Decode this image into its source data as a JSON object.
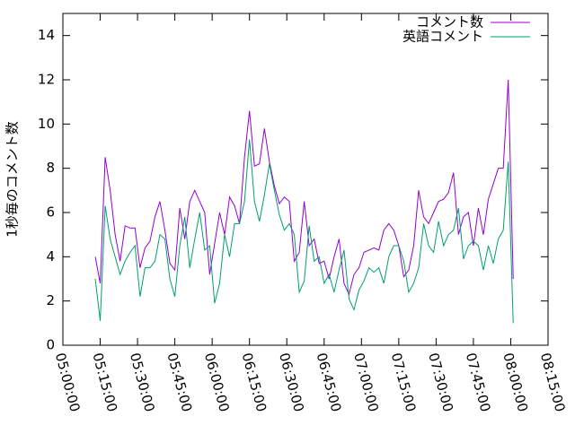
{
  "chart_data": {
    "type": "line",
    "ylabel": "1秒毎のコメント数",
    "x": [
      "05:13:00",
      "05:15:00",
      "05:17:00",
      "05:19:00",
      "05:21:00",
      "05:23:00",
      "05:25:00",
      "05:27:00",
      "05:29:00",
      "05:31:00",
      "05:33:00",
      "05:35:00",
      "05:37:00",
      "05:39:00",
      "05:41:00",
      "05:43:00",
      "05:45:00",
      "05:47:00",
      "05:49:00",
      "05:51:00",
      "05:53:00",
      "05:55:00",
      "05:57:00",
      "05:59:00",
      "06:01:00",
      "06:03:00",
      "06:05:00",
      "06:07:00",
      "06:09:00",
      "06:11:00",
      "06:13:00",
      "06:15:00",
      "06:17:00",
      "06:19:00",
      "06:21:00",
      "06:23:00",
      "06:25:00",
      "06:27:00",
      "06:29:00",
      "06:31:00",
      "06:33:00",
      "06:35:00",
      "06:37:00",
      "06:39:00",
      "06:41:00",
      "06:43:00",
      "06:45:00",
      "06:47:00",
      "06:49:00",
      "06:51:00",
      "06:53:00",
      "06:55:00",
      "06:57:00",
      "06:59:00",
      "07:01:00",
      "07:03:00",
      "07:05:00",
      "07:07:00",
      "07:09:00",
      "07:11:00",
      "07:13:00",
      "07:15:00",
      "07:17:00",
      "07:19:00",
      "07:21:00",
      "07:23:00",
      "07:25:00",
      "07:27:00",
      "07:29:00",
      "07:31:00",
      "07:33:00",
      "07:35:00",
      "07:37:00",
      "07:39:00",
      "07:41:00",
      "07:43:00",
      "07:45:00",
      "07:47:00",
      "07:49:00",
      "07:51:00",
      "07:53:00",
      "07:55:00",
      "07:57:00",
      "07:59:00",
      "08:01:00"
    ],
    "series": [
      {
        "name": "コメント数",
        "color": "#9400d3",
        "values": [
          4,
          2.8,
          8.5,
          7,
          5,
          3.8,
          5.4,
          5.3,
          5.3,
          3.5,
          4.4,
          4.7,
          5.8,
          6.5,
          5.2,
          3.7,
          3.4,
          6.2,
          4.8,
          6.5,
          7,
          6.5,
          6,
          3.2,
          4.6,
          6,
          5,
          6.7,
          6.3,
          5.5,
          8.5,
          10.6,
          8.1,
          8.2,
          9.8,
          8.3,
          7.2,
          6.4,
          6.7,
          6.5,
          3.8,
          4.2,
          6.5,
          4.5,
          4.8,
          3.7,
          3.8,
          3,
          4,
          4.8,
          2.8,
          2.3,
          3.2,
          3.5,
          4.2,
          4.3,
          4.4,
          4.3,
          5.2,
          5.5,
          5.2,
          4.5,
          3.1,
          3.4,
          4.5,
          7,
          5.8,
          5.5,
          6,
          6.5,
          6.6,
          6.9,
          7.8,
          5,
          5.8,
          6,
          4.5,
          6.2,
          5,
          6.6,
          7.3,
          8,
          8,
          12,
          3
        ]
      },
      {
        "name": "英語コメント",
        "color": "#009e73",
        "values": [
          3,
          1.1,
          6.3,
          4.8,
          4,
          3.2,
          3.8,
          4.2,
          4.5,
          2.2,
          3.5,
          3.5,
          3.8,
          5,
          4.8,
          3,
          2.2,
          4.5,
          5.8,
          3.5,
          4.8,
          6,
          4.3,
          4.5,
          1.9,
          2.8,
          5,
          4,
          5.5,
          5.5,
          6.5,
          9.3,
          6.5,
          5.6,
          6.8,
          8.2,
          7,
          5.9,
          5.2,
          5.5,
          5,
          2.4,
          2.9,
          5.4,
          3.8,
          4,
          2.8,
          3.2,
          2.4,
          3.4,
          4.3,
          2.1,
          1.6,
          2.5,
          2.9,
          3.5,
          3.3,
          3.5,
          2.8,
          4,
          4.5,
          4.5,
          3.8,
          2.4,
          2.8,
          3.5,
          5.5,
          4.5,
          4.2,
          5.6,
          4.5,
          5,
          5.2,
          6.2,
          3.9,
          4.5,
          4.7,
          4.5,
          3.4,
          4.5,
          3.7,
          4.8,
          5.2,
          8.3,
          1
        ]
      }
    ],
    "xlim": [
      "05:00:00",
      "08:15:00"
    ],
    "xticks": [
      "05:00:00",
      "05:15:00",
      "05:30:00",
      "05:45:00",
      "06:00:00",
      "06:15:00",
      "06:30:00",
      "06:45:00",
      "07:00:00",
      "07:15:00",
      "07:30:00",
      "07:45:00",
      "08:00:00",
      "08:15:00"
    ],
    "ylim": [
      0,
      15
    ],
    "yticks": [
      0,
      2,
      4,
      6,
      8,
      10,
      12,
      14
    ],
    "legend": "top-right"
  }
}
